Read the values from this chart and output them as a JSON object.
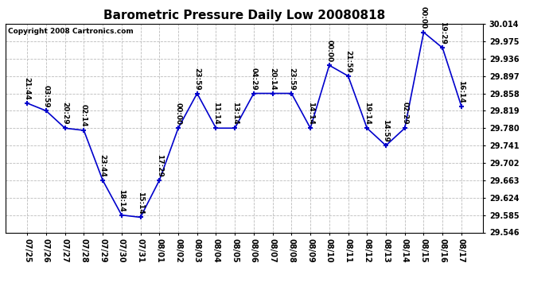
{
  "title": "Barometric Pressure Daily Low 20080818",
  "copyright": "Copyright 2008 Cartronics.com",
  "x_labels": [
    "07/25",
    "07/26",
    "07/27",
    "07/28",
    "07/29",
    "07/30",
    "07/31",
    "08/01",
    "08/02",
    "08/03",
    "08/04",
    "08/05",
    "08/06",
    "08/07",
    "08/08",
    "08/09",
    "08/10",
    "08/11",
    "08/12",
    "08/13",
    "08/14",
    "08/15",
    "08/16",
    "08/17"
  ],
  "y_values": [
    29.836,
    29.819,
    29.78,
    29.775,
    29.663,
    29.585,
    29.58,
    29.663,
    29.78,
    29.858,
    29.78,
    29.78,
    29.858,
    29.858,
    29.858,
    29.78,
    29.921,
    29.897,
    29.78,
    29.741,
    29.78,
    29.995,
    29.96,
    29.829
  ],
  "point_labels": [
    "21:44",
    "03:59",
    "20:29",
    "02:14",
    "23:44",
    "18:14",
    "15:14",
    "17:29",
    "00:00",
    "23:59",
    "11:14",
    "13:14",
    "04:29",
    "20:14",
    "23:59",
    "14:14",
    "00:00",
    "21:59",
    "19:14",
    "14:59",
    "02:29",
    "00:00",
    "19:29",
    "16:14"
  ],
  "line_color": "#0000CC",
  "marker_color": "#0000CC",
  "bg_color": "#ffffff",
  "grid_color": "#bbbbbb",
  "title_fontsize": 11,
  "label_fontsize": 6.5,
  "tick_fontsize": 7,
  "copyright_fontsize": 6.5,
  "ylim_min": 29.546,
  "ylim_max": 30.014,
  "yticks": [
    29.546,
    29.585,
    29.624,
    29.663,
    29.702,
    29.741,
    29.78,
    29.819,
    29.858,
    29.897,
    29.936,
    29.975,
    30.014
  ]
}
